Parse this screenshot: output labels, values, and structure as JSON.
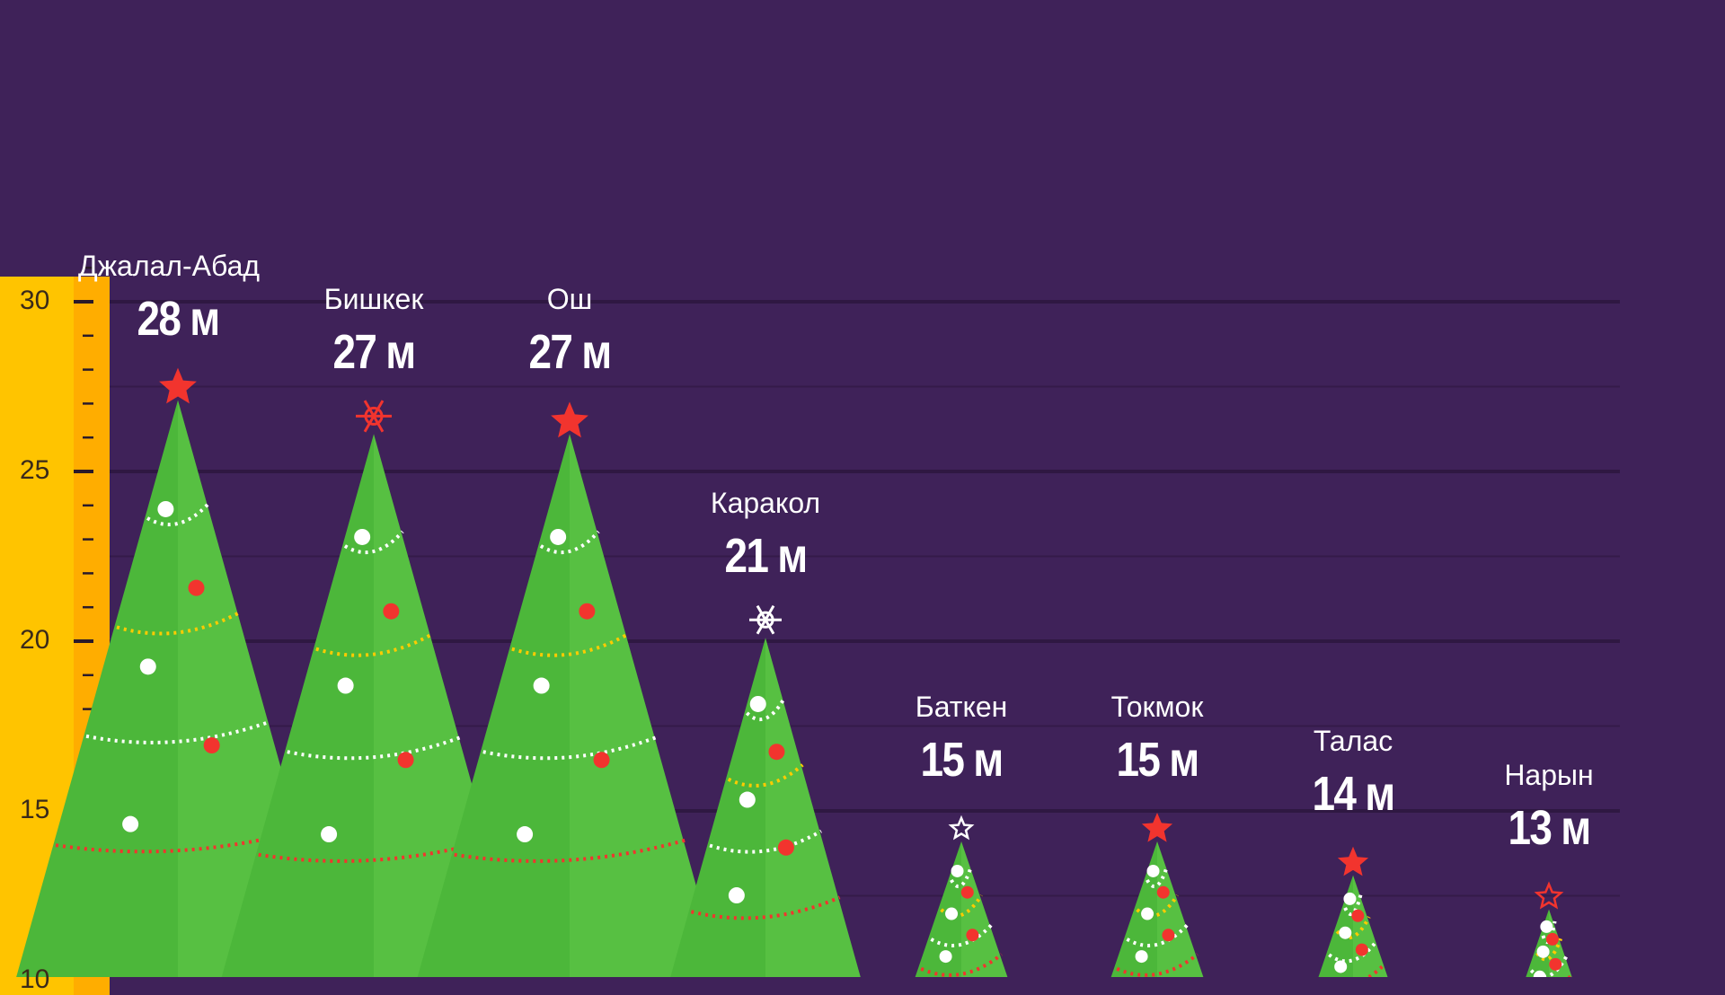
{
  "chart_data": {
    "type": "bar",
    "title": "",
    "xlabel": "",
    "ylabel": "",
    "unit": "м",
    "ylim": [
      10,
      31
    ],
    "yticks": [
      30,
      25,
      20,
      15,
      10
    ],
    "grid": true,
    "categories": [
      "Джалал-Абад",
      "Бишкек",
      "Ош",
      "Каракол",
      "Баткен",
      "Токмок",
      "Талас",
      "Нарын"
    ],
    "values": [
      28,
      27,
      27,
      21,
      15,
      15,
      14,
      13
    ],
    "value_labels": [
      "28 м",
      "27 м",
      "27 м",
      "21 м",
      "15 м",
      "15 м",
      "14 м",
      "13 м"
    ],
    "topper": [
      "red-star",
      "red-snowflake",
      "red-star",
      "white-snowflake",
      "white-outline-star",
      "red-star",
      "red-star",
      "red-outline-star"
    ]
  },
  "colors": {
    "background": "#3f2259",
    "gridline": "#2e1840",
    "ruler": "#ffc400",
    "ruler_inner": "#ffad00",
    "tree_green": "#4cb73a",
    "tree_green_light": "#62c94a",
    "red": "#f2342e",
    "yellow": "#ffcc00",
    "white": "#ffffff"
  }
}
